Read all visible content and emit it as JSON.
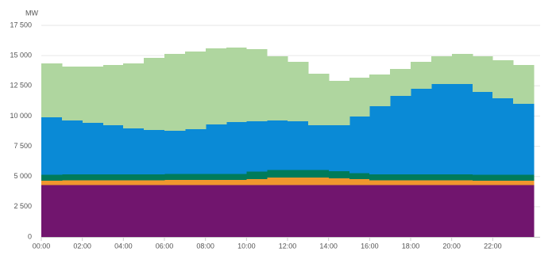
{
  "chart_data": {
    "type": "stacked-step-area",
    "y_axis_label": "MW",
    "categories": [
      "00:00",
      null,
      "02:00",
      null,
      "04:00",
      null,
      "06:00",
      null,
      "08:00",
      null,
      "10:00",
      null,
      "12:00",
      null,
      "14:00",
      null,
      "16:00",
      null,
      "18:00",
      null,
      "20:00",
      null,
      "22:00",
      null
    ],
    "series": [
      {
        "color": "#71156e",
        "values": [
          4300,
          4300,
          4300,
          4300,
          4300,
          4300,
          4300,
          4300,
          4300,
          4300,
          4300,
          4300,
          4300,
          4300,
          4300,
          4300,
          4300,
          4300,
          4300,
          4300,
          4300,
          4300,
          4300,
          4300
        ]
      },
      {
        "color": "#f0962d",
        "values": [
          350,
          380,
          380,
          380,
          380,
          380,
          420,
          420,
          420,
          420,
          500,
          600,
          600,
          600,
          550,
          480,
          380,
          380,
          380,
          380,
          380,
          350,
          350,
          350
        ]
      },
      {
        "color": "#007b5a",
        "values": [
          500,
          500,
          500,
          500,
          500,
          500,
          500,
          500,
          500,
          500,
          600,
          650,
          650,
          650,
          600,
          500,
          500,
          500,
          500,
          500,
          500,
          500,
          500,
          500
        ]
      },
      {
        "color": "#0a8ad6",
        "values": [
          4750,
          4450,
          4260,
          4060,
          3800,
          3670,
          3560,
          3690,
          4080,
          4280,
          4170,
          4080,
          4020,
          3690,
          3790,
          4680,
          5630,
          6480,
          7070,
          7470,
          7470,
          6840,
          6320,
          5860
        ]
      },
      {
        "color": "#afd69f",
        "values": [
          4450,
          4460,
          4650,
          4980,
          5370,
          5960,
          6360,
          6420,
          6300,
          6160,
          5960,
          5310,
          4910,
          4260,
          3670,
          3210,
          2620,
          2230,
          2230,
          2290,
          2490,
          2950,
          3140,
          3210
        ]
      }
    ],
    "ylim": [
      0,
      17500
    ],
    "yticks": [
      0,
      {
        "value": 2500,
        "label": "2 500"
      },
      {
        "value": 5000,
        "label": "5 000"
      },
      {
        "value": 7500,
        "label": "7 500"
      },
      {
        "value": 10000,
        "label": "10 000"
      },
      {
        "value": 12500,
        "label": "12 500"
      },
      {
        "value": 15000,
        "label": "15 000"
      },
      {
        "value": 17500,
        "label": "17 500"
      }
    ],
    "grid": true
  }
}
